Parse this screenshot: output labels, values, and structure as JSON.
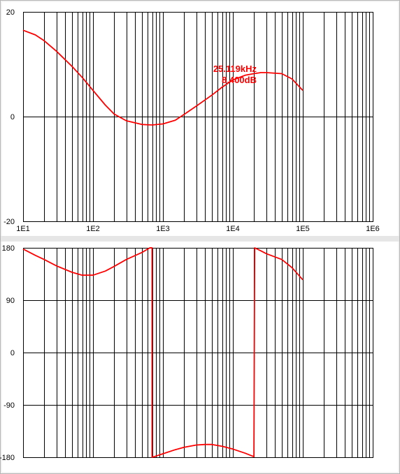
{
  "chart_data": [
    {
      "type": "line",
      "title": "",
      "xlabel": "",
      "ylabel": "",
      "x_scale": "log",
      "xlim": [
        10,
        1000000
      ],
      "ylim": [
        -20,
        20
      ],
      "grid": true,
      "x_tick_labels": [
        "1E1",
        "1E2",
        "1E3",
        "1E4",
        "1E5",
        "1E6"
      ],
      "y_ticks": [
        20,
        0,
        -20
      ],
      "y_tick_labels": [
        "20",
        "0",
        "-20"
      ],
      "line_color": "#ff0000",
      "series": [
        {
          "x": [
            10,
            15,
            20,
            30,
            50,
            70,
            100,
            150,
            200,
            300,
            500,
            700,
            1000,
            1500,
            2000,
            3000,
            5000,
            7000,
            10000,
            15000,
            20000,
            25119,
            30000,
            50000,
            70000,
            100000
          ],
          "values": [
            16.5,
            15.6,
            14.5,
            12.5,
            9.6,
            7.5,
            5.0,
            2.2,
            0.5,
            -0.8,
            -1.5,
            -1.6,
            -1.4,
            -0.7,
            0.4,
            2.0,
            4.1,
            5.6,
            7.0,
            7.9,
            8.2,
            8.4,
            8.4,
            8.2,
            7.2,
            5.0
          ]
        }
      ],
      "annotations": [
        {
          "text": "25.119kHz",
          "x": 25119,
          "y": 8.4
        },
        {
          "text": "8.400dB",
          "x": 25119,
          "y": 8.4
        }
      ]
    },
    {
      "type": "line",
      "title": "",
      "xlabel": "",
      "ylabel": "",
      "x_scale": "log",
      "xlim": [
        10,
        1000000
      ],
      "ylim": [
        -180,
        180
      ],
      "grid": true,
      "x_tick_labels": [],
      "y_ticks": [
        180,
        90,
        0,
        -90,
        -180
      ],
      "y_tick_labels": [
        "180",
        "90",
        "0",
        "-90",
        "-180"
      ],
      "line_color": "#ff0000",
      "series": [
        {
          "x": [
            10,
            15,
            20,
            30,
            50,
            70,
            100,
            150,
            200,
            300,
            500,
            650,
            700,
            700,
            750,
            1000,
            1500,
            2000,
            3000,
            4000,
            5000,
            7000,
            10000,
            15000,
            20000,
            20000,
            20500,
            25000,
            30000,
            50000,
            70000,
            100000
          ],
          "values": [
            178,
            167,
            160,
            149,
            138,
            133,
            133,
            140,
            148,
            160,
            172,
            180,
            180,
            -180,
            -179,
            -174,
            -167,
            -163,
            -159,
            -158,
            -158,
            -161,
            -166,
            -173,
            -179,
            -179,
            180,
            175,
            170,
            160,
            146,
            125
          ]
        }
      ]
    }
  ]
}
